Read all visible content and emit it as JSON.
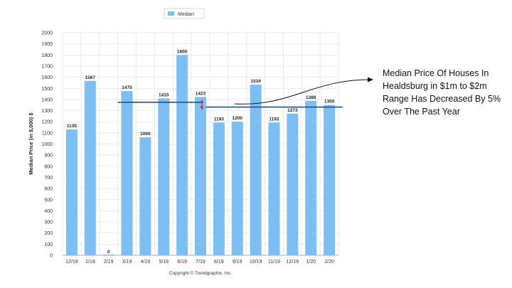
{
  "chart_data": {
    "type": "bar",
    "categories": [
      "12/18",
      "1/19",
      "2/19",
      "3/19",
      "4/19",
      "5/19",
      "6/19",
      "7/19",
      "8/19",
      "9/19",
      "10/19",
      "11/19",
      "12/19",
      "1/20",
      "2/20"
    ],
    "series": [
      {
        "name": "Median",
        "values": [
          1130,
          1567,
          0,
          1475,
          1060,
          1410,
          1800,
          1423,
          1193,
          1200,
          1534,
          1193,
          1273,
          1388,
          1350
        ]
      }
    ],
    "ylabel": "Median Price (in $,000) $",
    "xlabel": "",
    "ylim": [
      0,
      2000
    ],
    "ytick_step": 100,
    "grid": true,
    "legend_position": "top-center",
    "bar_color": "#7ebff3",
    "reference_lines": [
      1375,
      1332
    ],
    "reference_line_color": "#2a4a9a",
    "arrow_color": "#d02020",
    "copyright": "Copyright © Trendgraphix, Inc."
  },
  "annotation": {
    "text": "Median Price Of Houses In Healdsburg in $1m to $2m Range Has Decreased By 5% Over The Past Year"
  }
}
